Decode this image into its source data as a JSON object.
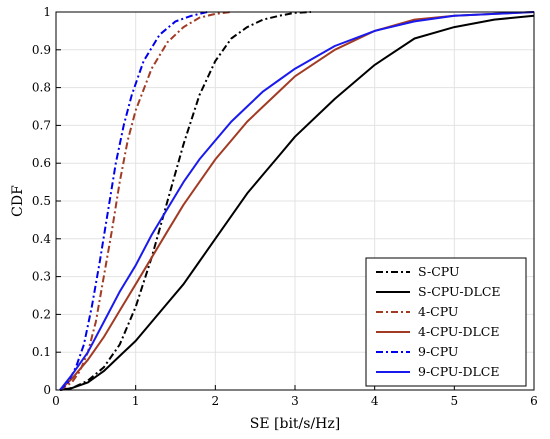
{
  "chart_data": {
    "type": "line",
    "xlabel": "SE [bit/s/Hz]",
    "ylabel": "CDF",
    "xlim": [
      0,
      6
    ],
    "ylim": [
      0,
      1
    ],
    "x_ticks": [
      "0",
      "1",
      "2",
      "3",
      "4",
      "5",
      "6"
    ],
    "y_ticks": [
      "0",
      "0.1",
      "0.2",
      "0.3",
      "0.4",
      "0.5",
      "0.6",
      "0.7",
      "0.8",
      "0.9",
      "1"
    ],
    "grid": true,
    "legend_position": "bottom-right",
    "series": [
      {
        "name": "S-CPU",
        "color": "#000000",
        "dash": "dashdot",
        "points": [
          [
            0.05,
            0
          ],
          [
            0.2,
            0.005
          ],
          [
            0.4,
            0.025
          ],
          [
            0.6,
            0.06
          ],
          [
            0.8,
            0.12
          ],
          [
            1.0,
            0.22
          ],
          [
            1.2,
            0.35
          ],
          [
            1.4,
            0.5
          ],
          [
            1.6,
            0.65
          ],
          [
            1.8,
            0.78
          ],
          [
            2.0,
            0.87
          ],
          [
            2.2,
            0.93
          ],
          [
            2.4,
            0.96
          ],
          [
            2.6,
            0.98
          ],
          [
            2.8,
            0.99
          ],
          [
            3.0,
            0.998
          ],
          [
            3.2,
            1.0
          ]
        ]
      },
      {
        "name": "S-CPU-DLCE",
        "color": "#000000",
        "dash": "solid",
        "points": [
          [
            0.05,
            0
          ],
          [
            0.2,
            0.005
          ],
          [
            0.4,
            0.02
          ],
          [
            0.6,
            0.05
          ],
          [
            0.8,
            0.09
          ],
          [
            1.0,
            0.13
          ],
          [
            1.2,
            0.18
          ],
          [
            1.4,
            0.23
          ],
          [
            1.6,
            0.28
          ],
          [
            1.8,
            0.34
          ],
          [
            2.0,
            0.4
          ],
          [
            2.2,
            0.46
          ],
          [
            2.4,
            0.52
          ],
          [
            2.6,
            0.57
          ],
          [
            2.8,
            0.62
          ],
          [
            3.0,
            0.67
          ],
          [
            3.5,
            0.77
          ],
          [
            4.0,
            0.86
          ],
          [
            4.5,
            0.93
          ],
          [
            5.0,
            0.96
          ],
          [
            5.5,
            0.98
          ],
          [
            6.0,
            0.99
          ]
        ]
      },
      {
        "name": "4-CPU",
        "color": "#a23b24",
        "dash": "dashdot",
        "points": [
          [
            0.05,
            0
          ],
          [
            0.2,
            0.02
          ],
          [
            0.3,
            0.05
          ],
          [
            0.4,
            0.1
          ],
          [
            0.5,
            0.18
          ],
          [
            0.6,
            0.3
          ],
          [
            0.7,
            0.42
          ],
          [
            0.8,
            0.55
          ],
          [
            0.9,
            0.66
          ],
          [
            1.0,
            0.74
          ],
          [
            1.2,
            0.85
          ],
          [
            1.4,
            0.92
          ],
          [
            1.6,
            0.96
          ],
          [
            1.8,
            0.985
          ],
          [
            2.0,
            0.995
          ],
          [
            2.2,
            1.0
          ]
        ]
      },
      {
        "name": "4-CPU-DLCE",
        "color": "#a23b24",
        "dash": "solid",
        "points": [
          [
            0.05,
            0
          ],
          [
            0.2,
            0.03
          ],
          [
            0.4,
            0.08
          ],
          [
            0.6,
            0.14
          ],
          [
            0.8,
            0.21
          ],
          [
            1.0,
            0.28
          ],
          [
            1.2,
            0.35
          ],
          [
            1.4,
            0.42
          ],
          [
            1.6,
            0.49
          ],
          [
            1.8,
            0.55
          ],
          [
            2.0,
            0.61
          ],
          [
            2.2,
            0.66
          ],
          [
            2.4,
            0.71
          ],
          [
            2.6,
            0.75
          ],
          [
            2.8,
            0.79
          ],
          [
            3.0,
            0.83
          ],
          [
            3.5,
            0.9
          ],
          [
            4.0,
            0.95
          ],
          [
            4.5,
            0.98
          ],
          [
            5.0,
            0.99
          ],
          [
            5.5,
            0.995
          ],
          [
            6.0,
            1.0
          ]
        ]
      },
      {
        "name": "9-CPU",
        "color": "#0000ee",
        "dash": "dashdot",
        "points": [
          [
            0.05,
            0
          ],
          [
            0.15,
            0.02
          ],
          [
            0.25,
            0.06
          ],
          [
            0.35,
            0.12
          ],
          [
            0.45,
            0.22
          ],
          [
            0.55,
            0.34
          ],
          [
            0.65,
            0.47
          ],
          [
            0.75,
            0.6
          ],
          [
            0.85,
            0.7
          ],
          [
            0.95,
            0.78
          ],
          [
            1.1,
            0.87
          ],
          [
            1.3,
            0.94
          ],
          [
            1.5,
            0.975
          ],
          [
            1.7,
            0.99
          ],
          [
            1.9,
            1.0
          ]
        ]
      },
      {
        "name": "9-CPU-DLCE",
        "color": "#1a1aee",
        "dash": "solid",
        "points": [
          [
            0.05,
            0
          ],
          [
            0.2,
            0.04
          ],
          [
            0.4,
            0.1
          ],
          [
            0.6,
            0.18
          ],
          [
            0.8,
            0.26
          ],
          [
            1.0,
            0.33
          ],
          [
            1.2,
            0.41
          ],
          [
            1.4,
            0.48
          ],
          [
            1.6,
            0.55
          ],
          [
            1.8,
            0.61
          ],
          [
            2.0,
            0.66
          ],
          [
            2.2,
            0.71
          ],
          [
            2.4,
            0.75
          ],
          [
            2.6,
            0.79
          ],
          [
            2.8,
            0.82
          ],
          [
            3.0,
            0.85
          ],
          [
            3.5,
            0.91
          ],
          [
            4.0,
            0.95
          ],
          [
            4.5,
            0.975
          ],
          [
            5.0,
            0.99
          ],
          [
            5.5,
            0.995
          ],
          [
            6.0,
            1.0
          ]
        ]
      }
    ]
  }
}
